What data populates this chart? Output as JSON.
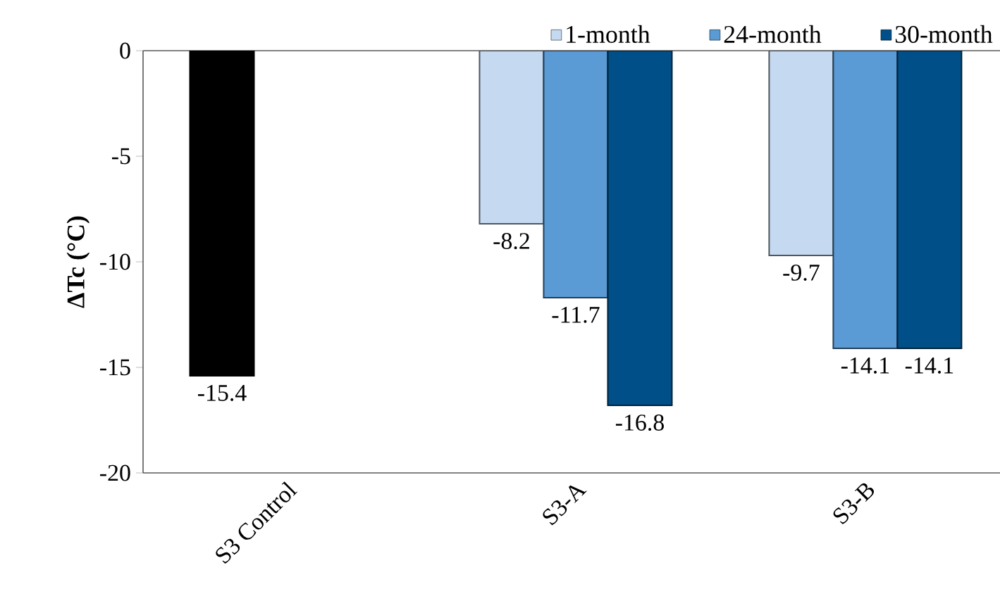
{
  "chart_data": {
    "type": "bar",
    "ylabel": "ΔTc (°C)",
    "categories": [
      "S3 Control",
      "S3-A",
      "S3-B"
    ],
    "series": [
      {
        "name": "1-month",
        "color": "#c5d9f1",
        "colors": [
          "#000000",
          "#c5d9f1",
          "#c5d9f1"
        ],
        "values": [
          -15.4,
          -8.2,
          -9.7
        ]
      },
      {
        "name": "24-month",
        "color": "#5b9bd5",
        "values": [
          null,
          -11.7,
          -14.1
        ]
      },
      {
        "name": "30-month",
        "color": "#004f88",
        "values": [
          null,
          -16.8,
          -14.1
        ]
      }
    ],
    "ylim": [
      -20,
      0
    ],
    "yticks": [
      -20,
      -15,
      -10,
      -5,
      0
    ],
    "data_labels": true,
    "legend": "top right",
    "grid": false
  }
}
